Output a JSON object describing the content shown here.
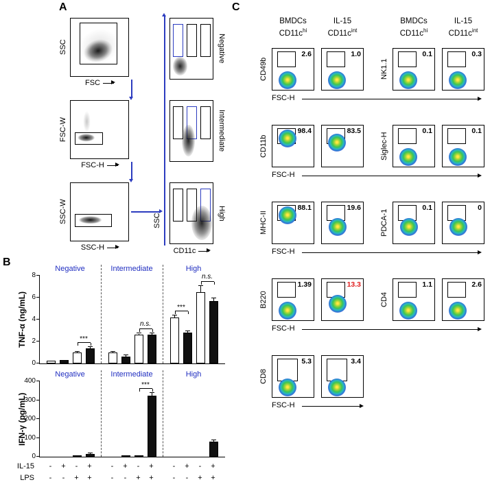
{
  "figure": {
    "panel_a": {
      "label": "A",
      "gating": [
        {
          "ylabel": "SSC",
          "xlabel": "FSC"
        },
        {
          "ylabel": "FSC-W",
          "xlabel": "FSC-H"
        },
        {
          "ylabel": "SSC-W",
          "xlabel": "SSC-H"
        }
      ],
      "cd11c": {
        "ylabel": "SSC",
        "xlabel": "CD11c",
        "rows": [
          {
            "label": "Negative",
            "active_gate": 0
          },
          {
            "label": "Intermediate",
            "active_gate": 1
          },
          {
            "label": "High",
            "active_gate": 2
          }
        ]
      }
    },
    "panel_b": {
      "label": "B",
      "condition_rows": [
        {
          "name": "IL-15",
          "values": [
            "-",
            "+",
            "-",
            "+",
            "-",
            "+",
            "-",
            "+",
            "-",
            "+",
            "-",
            "+"
          ]
        },
        {
          "name": "LPS",
          "values": [
            "-",
            "-",
            "+",
            "+",
            "-",
            "-",
            "+",
            "+",
            "-",
            "-",
            "+",
            "+"
          ]
        }
      ]
    },
    "panel_c": {
      "label": "C",
      "xlabel": "FSC-H",
      "col_headers": [
        {
          "line1": "BMDCs",
          "base": "CD11c",
          "sup": "hi"
        },
        {
          "line1": "IL-15",
          "base": "CD11c",
          "sup": "int"
        }
      ],
      "left_rows": [
        {
          "marker": "CD49b",
          "values": [
            "2.6",
            "1.0"
          ],
          "blobs": [
            "low",
            "low"
          ]
        },
        {
          "marker": "CD11b",
          "values": [
            "98.4",
            "83.5"
          ],
          "blobs": [
            "gate",
            "gate2"
          ]
        },
        {
          "marker": "MHC-II",
          "values": [
            "88.1",
            "19.6"
          ],
          "blobs": [
            "gate",
            "mid"
          ]
        },
        {
          "marker": "B220",
          "values": [
            "1.39",
            "13.3"
          ],
          "blobs": [
            "low",
            "mid"
          ],
          "value_colors": [
            null,
            "#e02020"
          ]
        },
        {
          "marker": "CD8",
          "values": [
            "5.3",
            "3.4"
          ],
          "blobs": [
            "low",
            "low"
          ],
          "tall_gate": true
        }
      ],
      "right_rows": [
        {
          "marker": "NK1.1",
          "values": [
            "0.1",
            "0.3"
          ],
          "blobs": [
            "low",
            "low"
          ]
        },
        {
          "marker": "Siglec-H",
          "values": [
            "0.1",
            "0.1"
          ],
          "blobs": [
            "low",
            "low"
          ]
        },
        {
          "marker": "PDCA-1",
          "values": [
            "0.1",
            "0"
          ],
          "blobs": [
            "mid",
            "mid"
          ]
        },
        {
          "marker": "CD4",
          "values": [
            "1.1",
            "2.6"
          ],
          "blobs": [
            "low",
            "low"
          ]
        }
      ]
    }
  },
  "colors": {
    "accent_blue": "#2b3bbf",
    "group_label_blue": "#1f2dc0",
    "highlight_red": "#e02020"
  },
  "chart_data": [
    {
      "type": "bar",
      "title": "TNF-α",
      "ylabel": "TNF-α (ng/mL)",
      "ylim": [
        0,
        8
      ],
      "yticks": [
        0,
        2,
        4,
        6,
        8
      ],
      "groups": [
        "Negative",
        "Intermediate",
        "High"
      ],
      "bar_fills": [
        "white",
        "black",
        "white",
        "black"
      ],
      "x_axis_rows": [
        {
          "name": "IL-15",
          "values": [
            "-",
            "+",
            "-",
            "+"
          ]
        },
        {
          "name": "LPS",
          "values": [
            "-",
            "-",
            "+",
            "+"
          ]
        }
      ],
      "values": [
        [
          0.25,
          0.3,
          1.0,
          1.4
        ],
        [
          1.0,
          0.65,
          2.6,
          2.6
        ],
        [
          4.2,
          2.8,
          6.5,
          5.7
        ]
      ],
      "errors": [
        [
          0.05,
          0.05,
          0.08,
          0.12
        ],
        [
          0.08,
          0.08,
          0.12,
          0.15
        ],
        [
          0.15,
          0.15,
          0.55,
          0.25
        ]
      ],
      "annotations": [
        {
          "group": 0,
          "bars": [
            2,
            3
          ],
          "label": "***"
        },
        {
          "group": 1,
          "bars": [
            2,
            3
          ],
          "label": "n.s."
        },
        {
          "group": 2,
          "bars": [
            0,
            1
          ],
          "label": "***"
        },
        {
          "group": 2,
          "bars": [
            2,
            3
          ],
          "label": "n.s."
        }
      ],
      "legend_position": "none",
      "grid": false
    },
    {
      "type": "bar",
      "title": "IFN-γ",
      "ylabel": "IFN-γ (pg/mL)",
      "ylim": [
        0,
        400
      ],
      "yticks": [
        0,
        100,
        200,
        300,
        400
      ],
      "groups": [
        "Negative",
        "Intermediate",
        "High"
      ],
      "bar_fills": [
        "white",
        "black",
        "white",
        "black"
      ],
      "x_axis_rows": [
        {
          "name": "IL-15",
          "values": [
            "-",
            "+",
            "-",
            "+"
          ]
        },
        {
          "name": "LPS",
          "values": [
            "-",
            "-",
            "+",
            "+"
          ]
        }
      ],
      "values": [
        [
          0,
          0,
          3,
          15
        ],
        [
          0,
          3,
          6,
          325
        ],
        [
          0,
          0,
          2,
          80
        ]
      ],
      "errors": [
        [
          0,
          0,
          1,
          4
        ],
        [
          0,
          1,
          2,
          12
        ],
        [
          0,
          0,
          1,
          8
        ]
      ],
      "annotations": [
        {
          "group": 1,
          "bars": [
            2,
            3
          ],
          "label": "***"
        }
      ],
      "legend_position": "none",
      "grid": false
    }
  ]
}
